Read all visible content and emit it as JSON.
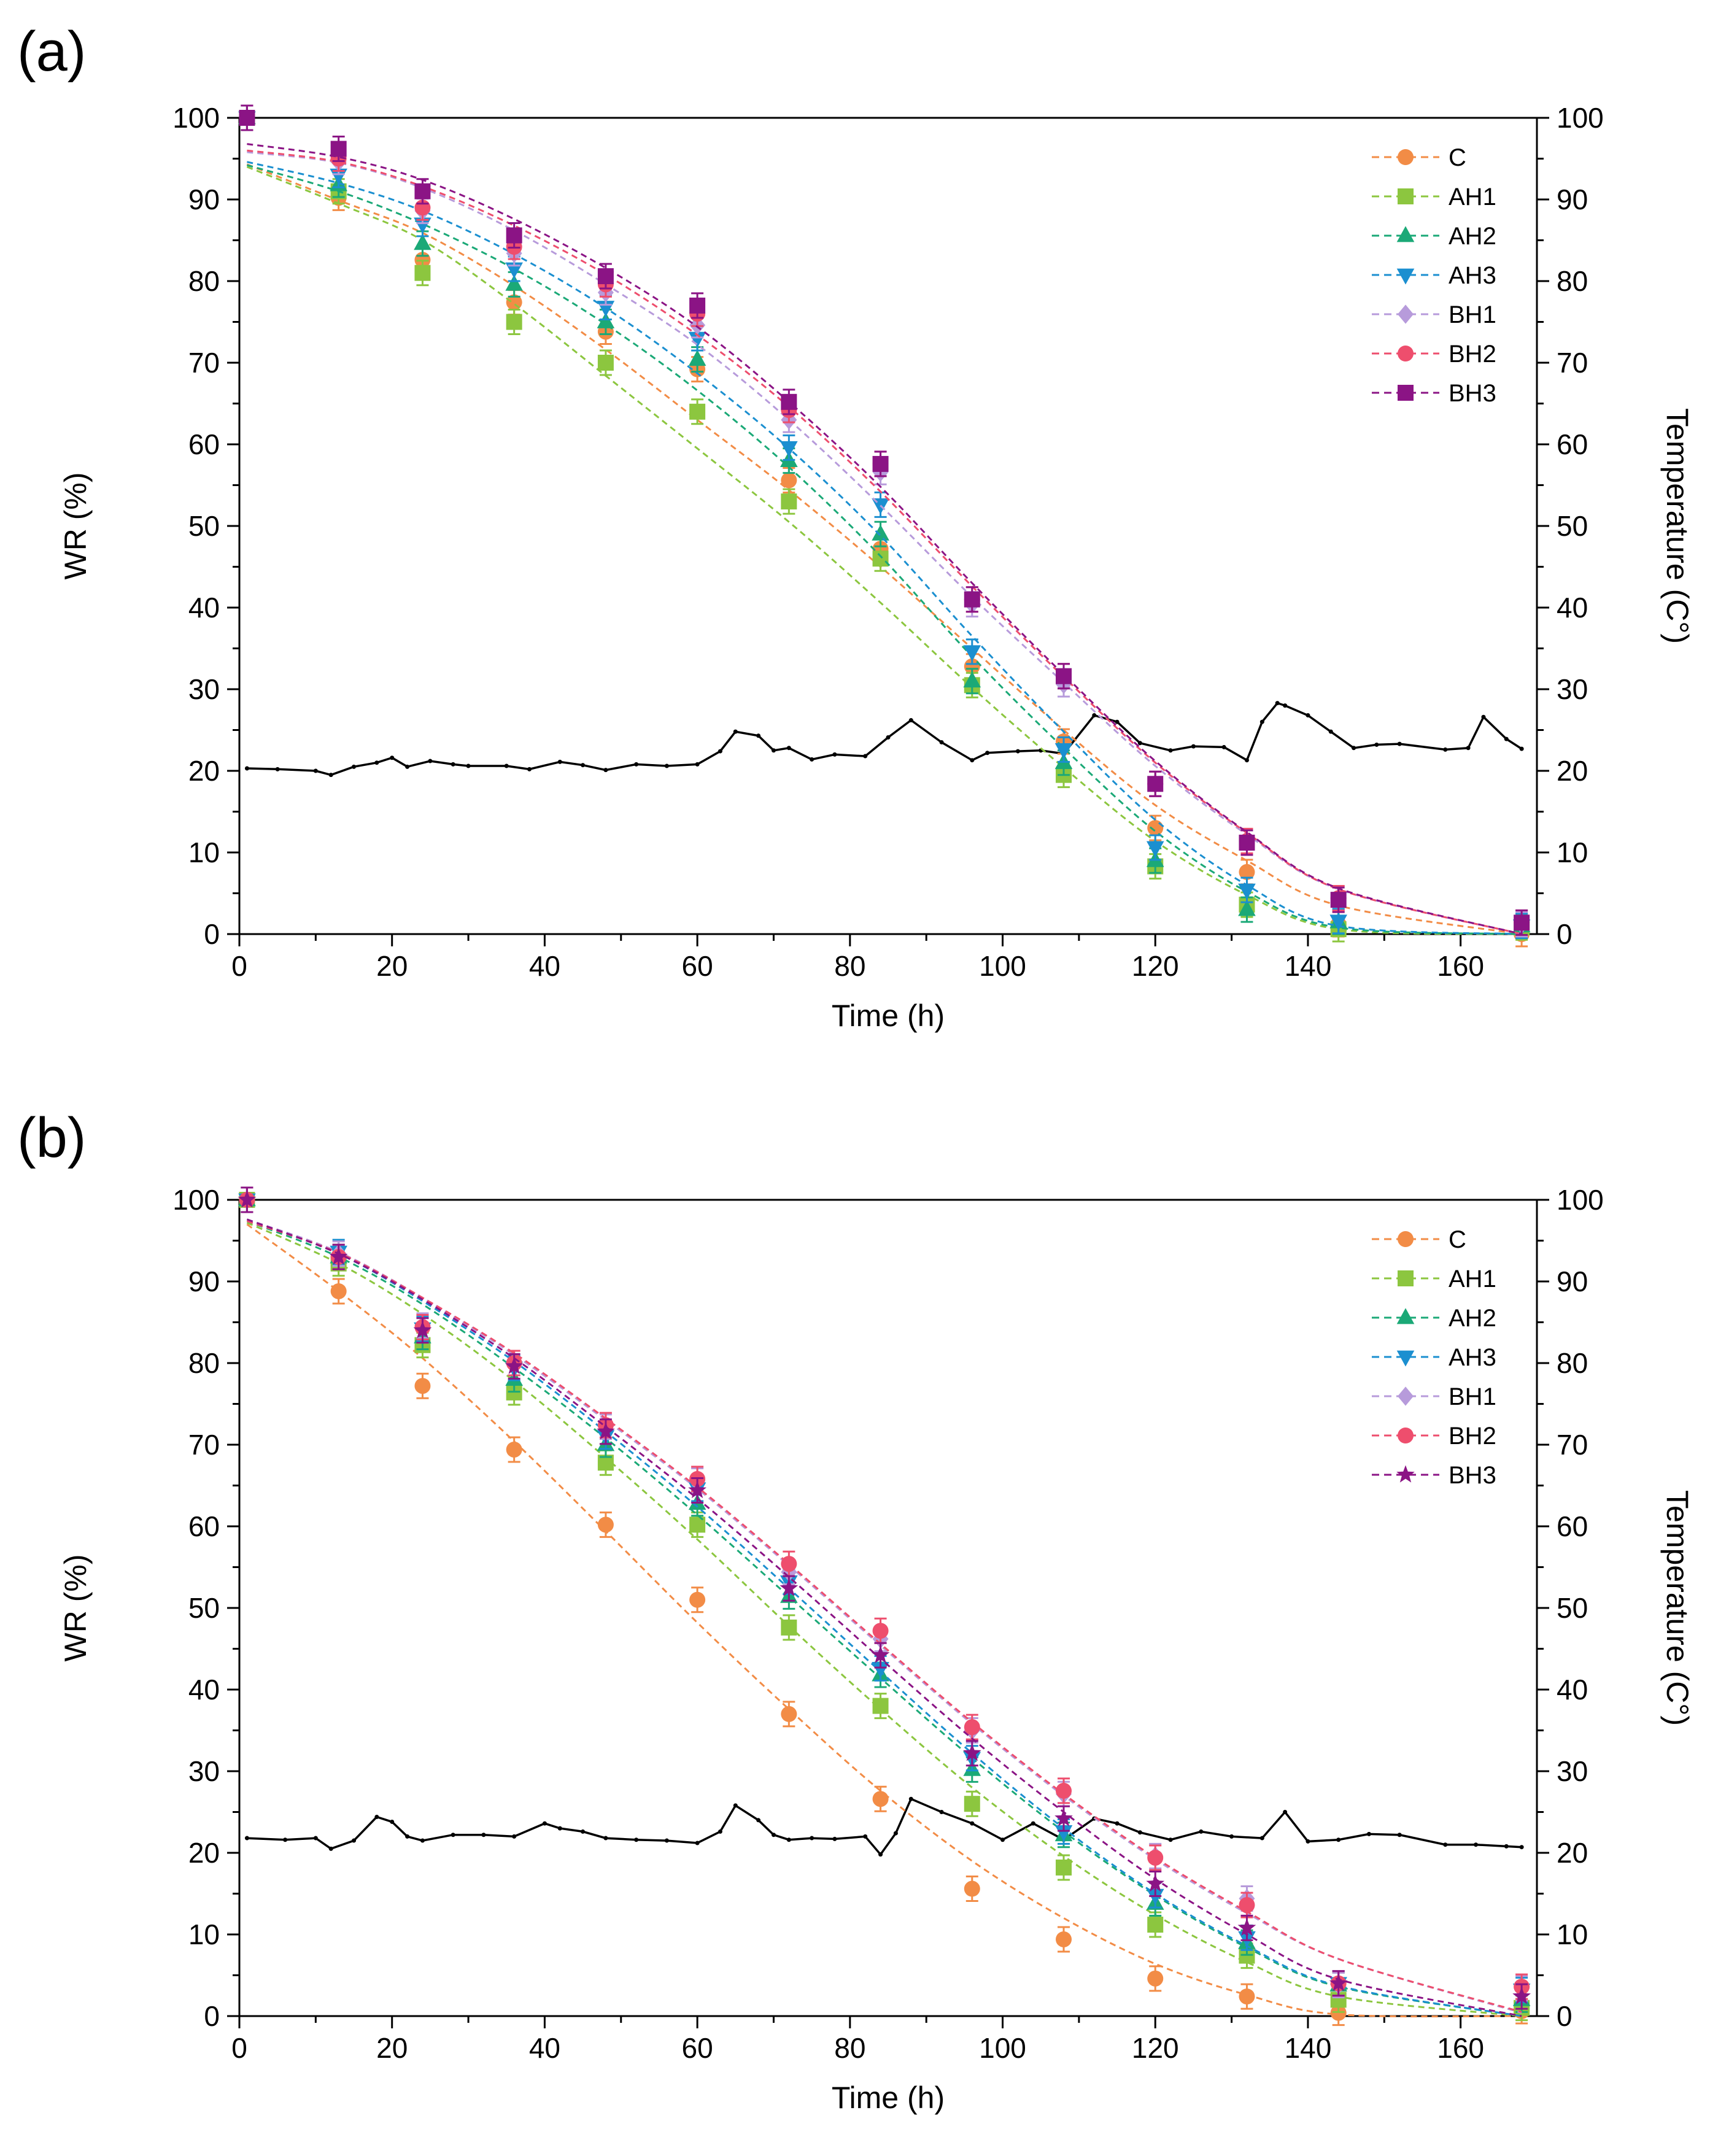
{
  "chart_data": [
    {
      "panel_label": "(a)",
      "type": "scatter",
      "xlabel": "Time (h)",
      "ylabel": "WR (%)",
      "y2label": "Temperature (C°)",
      "xlim": [
        0,
        170
      ],
      "ylim": [
        0,
        100
      ],
      "y2lim": [
        0,
        100
      ],
      "x_ticks": [
        0,
        20,
        40,
        60,
        80,
        100,
        120,
        140,
        160
      ],
      "y_ticks": [
        0,
        10,
        20,
        30,
        40,
        50,
        60,
        70,
        80,
        90,
        100
      ],
      "x_tick_labels": [
        "0",
        "20",
        "40",
        "60",
        "80",
        "100",
        "120",
        "140",
        "160"
      ],
      "y_tick_labels": [
        "0",
        "10",
        "20",
        "30",
        "40",
        "50",
        "60",
        "70",
        "80",
        "90",
        "100"
      ],
      "y2_tick_labels": [
        "0",
        "10",
        "20",
        "30",
        "40",
        "50",
        "60",
        "70",
        "80",
        "90",
        "100"
      ],
      "legend_position": "top-right",
      "x": [
        1,
        13,
        24,
        36,
        48,
        60,
        72,
        84,
        96,
        108,
        120,
        132,
        144,
        168
      ],
      "series": [
        {
          "name": "C",
          "color": "#F28C46",
          "marker": "circle",
          "values": [
            100,
            90.2,
            82.6,
            77.4,
            73.8,
            69.2,
            55.6,
            47.2,
            32.8,
            23.6,
            13,
            7.6,
            1.2,
            0
          ],
          "fit": [
            94.3,
            89.9,
            85.9,
            79.4,
            71.6,
            63,
            54.4,
            45,
            35,
            25,
            15.8,
            9,
            3.5,
            0
          ]
        },
        {
          "name": "AH1",
          "color": "#8CC63F",
          "marker": "square",
          "values": [
            100,
            91,
            81,
            75,
            70,
            64,
            53,
            46,
            30.5,
            19.5,
            8.3,
            3.6,
            0.6,
            0.8
          ],
          "fit": [
            94,
            89.5,
            85,
            77.2,
            68.4,
            59.5,
            50.5,
            40.6,
            30.2,
            20.4,
            11.4,
            4.8,
            0.6,
            0
          ]
        },
        {
          "name": "AH2",
          "color": "#1BA977",
          "marker": "triangle-up",
          "values": [
            100,
            91.8,
            84.6,
            79.6,
            75,
            70.4,
            58,
            49,
            31,
            21,
            9,
            3,
            1.5,
            1
          ],
          "fit": [
            94.2,
            91,
            87,
            81.5,
            74.7,
            66.6,
            57.2,
            46.3,
            34,
            22.8,
            12.6,
            5.2,
            0.8,
            0
          ]
        },
        {
          "name": "AH3",
          "color": "#1B8FD0",
          "marker": "triangle-down",
          "values": [
            100,
            93,
            87,
            81.5,
            76.8,
            73,
            59.6,
            52.6,
            34.6,
            22.6,
            10.6,
            5.4,
            1.6,
            1
          ],
          "fit": [
            94.6,
            92,
            88.6,
            83.3,
            76.7,
            68.7,
            59.5,
            48.8,
            36.5,
            24.8,
            14,
            6,
            1,
            0
          ]
        },
        {
          "name": "BH1",
          "color": "#B79BDB",
          "marker": "diamond",
          "values": [
            100,
            94.6,
            88.6,
            83.4,
            78.6,
            74.6,
            63,
            56.6,
            40.4,
            30.6,
            18.4,
            11.2,
            4.4,
            1.2
          ],
          "fit": [
            95.8,
            94.5,
            91.4,
            86.2,
            79.6,
            72.2,
            63,
            52.5,
            41.3,
            30.8,
            20.6,
            12.2,
            5.5,
            0
          ]
        },
        {
          "name": "BH2",
          "color": "#EE4E6D",
          "marker": "circle",
          "values": [
            100,
            95,
            89,
            84.2,
            79.6,
            76,
            64.2,
            57.6,
            41,
            31.6,
            18.4,
            11.4,
            4.4,
            1.4
          ],
          "fit": [
            96,
            94.6,
            91.6,
            86.8,
            80.8,
            73.4,
            64.6,
            54.2,
            42.6,
            31.5,
            21,
            12.4,
            5.5,
            0
          ]
        },
        {
          "name": "BH3",
          "color": "#8B1485",
          "marker": "square",
          "values": [
            100,
            96.2,
            91,
            85.6,
            80.6,
            77,
            65.2,
            57.6,
            41,
            31.6,
            18.4,
            11.2,
            4.2,
            1.4
          ],
          "fit": [
            96.8,
            95.2,
            92.4,
            87.6,
            81.6,
            74.4,
            65.2,
            54.8,
            43,
            31.8,
            21.2,
            12.5,
            5.6,
            0
          ]
        }
      ],
      "temperature": {
        "name": "Temperature",
        "color": "#000000",
        "x": [
          1,
          5,
          10,
          12,
          15,
          18,
          20,
          22,
          25,
          28,
          30,
          35,
          38,
          42,
          45,
          48,
          52,
          56,
          60,
          63,
          65,
          68,
          70,
          72,
          75,
          78,
          82,
          85,
          88,
          92,
          96,
          98,
          102,
          105,
          108,
          112,
          115,
          118,
          122,
          125,
          129,
          132,
          134,
          136,
          137,
          140,
          143,
          146,
          149,
          152,
          158,
          161,
          163,
          166,
          168
        ],
        "values": [
          20.3,
          20.2,
          20,
          19.5,
          20.5,
          21,
          21.6,
          20.5,
          21.2,
          20.8,
          20.6,
          20.6,
          20.2,
          21.1,
          20.7,
          20.1,
          20.8,
          20.6,
          20.8,
          22.4,
          24.8,
          24.3,
          22.5,
          22.8,
          21.4,
          22,
          21.8,
          24.1,
          26.2,
          23.5,
          21.3,
          22.2,
          22.4,
          22.5,
          22.1,
          26.8,
          26,
          23.4,
          22.5,
          23,
          22.9,
          21.3,
          26,
          28.3,
          28,
          26.8,
          24.8,
          22.8,
          23.2,
          23.3,
          22.6,
          22.8,
          26.6,
          23.9,
          22.7
        ]
      }
    },
    {
      "panel_label": "(b)",
      "type": "scatter",
      "xlabel": "Time (h)",
      "ylabel": "WR (%)",
      "y2label": "Temperature (C°)",
      "xlim": [
        0,
        170
      ],
      "ylim": [
        0,
        100
      ],
      "y2lim": [
        0,
        100
      ],
      "x_ticks": [
        0,
        20,
        40,
        60,
        80,
        100,
        120,
        140,
        160
      ],
      "y_ticks": [
        0,
        10,
        20,
        30,
        40,
        50,
        60,
        70,
        80,
        90,
        100
      ],
      "x_tick_labels": [
        "0",
        "20",
        "40",
        "60",
        "80",
        "100",
        "120",
        "140",
        "160"
      ],
      "y_tick_labels": [
        "0",
        "10",
        "20",
        "30",
        "40",
        "50",
        "60",
        "70",
        "80",
        "90",
        "100"
      ],
      "y2_tick_labels": [
        "0",
        "10",
        "20",
        "30",
        "40",
        "50",
        "60",
        "70",
        "80",
        "90",
        "100"
      ],
      "legend_position": "top-right",
      "x": [
        1,
        13,
        24,
        36,
        48,
        60,
        72,
        84,
        96,
        108,
        120,
        132,
        144,
        168
      ],
      "series": [
        {
          "name": "C",
          "color": "#F28C46",
          "marker": "circle",
          "values": [
            100,
            88.8,
            77.2,
            69.4,
            60.2,
            51,
            37,
            26.6,
            15.6,
            9.4,
            4.6,
            2.4,
            0.4,
            0.6
          ],
          "fit": [
            97,
            88.8,
            80.6,
            70.4,
            59.4,
            48.2,
            37.6,
            27.6,
            19,
            12,
            6.4,
            2.6,
            0.2,
            0
          ]
        },
        {
          "name": "AH1",
          "color": "#8CC63F",
          "marker": "square",
          "values": [
            100,
            92.2,
            82.2,
            76.4,
            67.8,
            60.2,
            47.6,
            38,
            26,
            18.2,
            11.2,
            7.4,
            2,
            1
          ],
          "fit": [
            97.2,
            92.2,
            86,
            77.8,
            68.4,
            58.4,
            47.8,
            37.6,
            28,
            19.6,
            12.4,
            6.6,
            2.4,
            0
          ]
        },
        {
          "name": "AH2",
          "color": "#1BA977",
          "marker": "triangle-up",
          "values": [
            100,
            93,
            83.2,
            78,
            70,
            62.8,
            51.4,
            41.8,
            30.2,
            22.2,
            13.8,
            9,
            3.8,
            2
          ],
          "fit": [
            97.4,
            93,
            87.2,
            79.4,
            70.8,
            61.4,
            51.4,
            41.4,
            31.6,
            22.6,
            14.8,
            8.4,
            3.6,
            0
          ]
        },
        {
          "name": "AH3",
          "color": "#1B8FD0",
          "marker": "triangle-down",
          "values": [
            100,
            93.6,
            84.2,
            79.4,
            71,
            64.6,
            53.2,
            42.6,
            31.6,
            22.6,
            14.8,
            9.6,
            4,
            3.2
          ],
          "fit": [
            97.6,
            93.4,
            87.6,
            80.2,
            71.6,
            62.4,
            52.4,
            42.2,
            32.2,
            23,
            15,
            8.6,
            3.7,
            0
          ]
        },
        {
          "name": "BH1",
          "color": "#B79BDB",
          "marker": "diamond",
          "values": [
            100,
            93.4,
            84.6,
            80,
            72.2,
            65.6,
            54.4,
            46.2,
            35,
            27.2,
            19.6,
            14.4,
            3.8,
            3.4
          ],
          "fit": [
            97.6,
            93.6,
            88,
            81,
            73,
            64.6,
            55.2,
            45.4,
            35.8,
            27,
            19.2,
            12.6,
            7,
            0.4
          ]
        },
        {
          "name": "BH2",
          "color": "#EE4E6D",
          "marker": "circle",
          "values": [
            100,
            93,
            84.4,
            80,
            72.4,
            65.8,
            55.4,
            47.2,
            35.4,
            27.6,
            19.4,
            13.6,
            4,
            3.6
          ],
          "fit": [
            97.4,
            93.5,
            88,
            81.2,
            73.2,
            64.8,
            55.4,
            45.6,
            36,
            27.2,
            19.4,
            12.8,
            7,
            0.5
          ]
        },
        {
          "name": "BH3",
          "color": "#8B1485",
          "marker": "star",
          "values": [
            100,
            93,
            84,
            79.6,
            71.6,
            64.4,
            52.4,
            44.2,
            32.2,
            24.2,
            16.2,
            10.8,
            4,
            2.4
          ],
          "fit": [
            97.6,
            93.4,
            87.8,
            80.6,
            72.2,
            63.4,
            53.8,
            43.8,
            34,
            25,
            16.8,
            10,
            4.5,
            0
          ]
        }
      ],
      "temperature": {
        "name": "Temperature",
        "color": "#000000",
        "x": [
          1,
          6,
          10,
          12,
          15,
          18,
          20,
          22,
          24,
          28,
          32,
          36,
          40,
          42,
          45,
          48,
          52,
          56,
          60,
          63,
          65,
          68,
          70,
          72,
          75,
          78,
          82,
          84,
          86,
          88,
          92,
          96,
          100,
          104,
          108,
          112,
          115,
          118,
          122,
          126,
          130,
          134,
          137,
          140,
          144,
          148,
          152,
          158,
          162,
          166,
          168
        ],
        "values": [
          21.8,
          21.6,
          21.8,
          20.5,
          21.5,
          24.4,
          23.8,
          22,
          21.5,
          22.2,
          22.2,
          22,
          23.6,
          23,
          22.6,
          21.8,
          21.6,
          21.5,
          21.2,
          22.6,
          25.8,
          24,
          22.2,
          21.6,
          21.8,
          21.7,
          22,
          19.8,
          22.4,
          26.6,
          25,
          23.6,
          21.6,
          23.6,
          21.6,
          24.2,
          23.6,
          22.5,
          21.6,
          22.6,
          22,
          21.8,
          25,
          21.4,
          21.6,
          22.3,
          22.2,
          21,
          21,
          20.8,
          20.7
        ]
      }
    }
  ]
}
